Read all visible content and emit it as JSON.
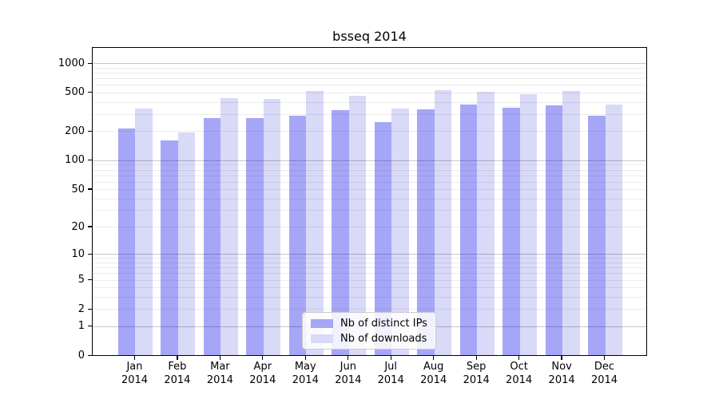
{
  "chart_data": {
    "type": "bar",
    "title": "bsseq 2014",
    "categories": [
      "Jan 2014",
      "Feb 2014",
      "Mar 2014",
      "Apr 2014",
      "May 2014",
      "Jun 2014",
      "Jul 2014",
      "Aug 2014",
      "Sep 2014",
      "Oct 2014",
      "Nov 2014",
      "Dec 2014"
    ],
    "series": [
      {
        "name": "Nb of distinct IPs",
        "color": "#a6a6f8",
        "values": [
          212,
          158,
          272,
          272,
          285,
          324,
          247,
          335,
          376,
          348,
          364,
          286
        ]
      },
      {
        "name": "Nb of downloads",
        "color": "#d9d9f8",
        "values": [
          340,
          192,
          436,
          423,
          514,
          458,
          340,
          522,
          507,
          474,
          518,
          372
        ]
      }
    ],
    "xlabel": "",
    "ylabel": "",
    "y_scale": "log10(1+v)",
    "ylim": [
      0,
      1450
    ],
    "y_tick_values": [
      0,
      1,
      2,
      5,
      10,
      20,
      50,
      100,
      200,
      500,
      1000
    ],
    "y_tick_labels": [
      "0",
      "1",
      "2",
      "5",
      "10",
      "20",
      "50",
      "100",
      "200",
      "500",
      "1000"
    ],
    "grid_major_values": [
      1,
      10,
      100,
      1000
    ],
    "grid_minor_values": [
      2,
      3,
      4,
      5,
      6,
      7,
      8,
      9,
      20,
      30,
      40,
      50,
      60,
      70,
      80,
      90,
      200,
      300,
      400,
      500,
      600,
      700,
      800,
      900
    ],
    "grid": "on",
    "legend_position": "lower center"
  }
}
